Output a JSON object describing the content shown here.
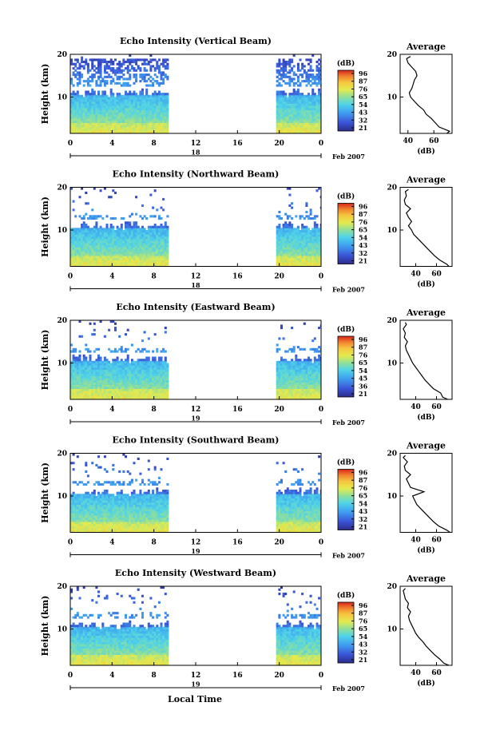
{
  "figure": {
    "date_label": "Feb 2007",
    "x_axis_label": "Local Time",
    "height_label": "Height (km)",
    "colorbar_unit": "(dB)",
    "average_title": "Average",
    "average_xlabel": "(dB)"
  },
  "chart_data": [
    {
      "type": "heatmap",
      "title": "Echo Intensity (Vertical Beam)",
      "ylabel": "Height (km)",
      "x_ticks": [
        "0",
        "4",
        "8",
        "12",
        "16",
        "20",
        "0"
      ],
      "day_label": "18",
      "date_label": "Feb 2007",
      "xlim": [
        0,
        24
      ],
      "ylim": [
        1.5,
        20
      ],
      "y_ticks": [
        "20",
        "10"
      ],
      "data_periods_hours": [
        [
          0,
          9.4
        ],
        [
          19.7,
          24
        ]
      ],
      "colorbar": {
        "unit": "(dB)",
        "ticks": [
          "96",
          "87",
          "76",
          "65",
          "54",
          "43",
          "32",
          "21"
        ],
        "range_db": [
          21,
          96
        ]
      },
      "average_profile": {
        "title": "Average",
        "xlabel": "(dB)",
        "x_ticks": [
          "40",
          "60"
        ],
        "xlim": [
          34,
          74
        ],
        "height_km": [
          1.5,
          2,
          3,
          4,
          5,
          6,
          7,
          8,
          9,
          10,
          11,
          12,
          13,
          14,
          15,
          16,
          17,
          18,
          19,
          19.5
        ],
        "db": [
          70,
          72,
          64,
          61,
          58,
          54,
          52,
          48,
          45,
          42,
          41,
          43,
          44,
          45,
          47,
          46,
          43,
          40,
          39,
          42
        ]
      }
    },
    {
      "type": "heatmap",
      "title": "Echo Intensity (Northward Beam)",
      "ylabel": "Height (km)",
      "x_ticks": [
        "0",
        "4",
        "8",
        "12",
        "16",
        "20",
        "0"
      ],
      "day_label": "18",
      "date_label": "Feb 2007",
      "xlim": [
        0,
        24
      ],
      "ylim": [
        1.5,
        20
      ],
      "y_ticks": [
        "20",
        "10"
      ],
      "data_periods_hours": [
        [
          0,
          9.4
        ],
        [
          19.7,
          24
        ]
      ],
      "colorbar": {
        "unit": "(dB)",
        "ticks": [
          "96",
          "87",
          "76",
          "65",
          "54",
          "43",
          "32",
          "21"
        ],
        "range_db": [
          21,
          96
        ]
      },
      "average_profile": {
        "title": "Average",
        "xlabel": "(dB)",
        "x_ticks": [
          "40",
          "60"
        ],
        "xlim": [
          25,
          75
        ],
        "height_km": [
          1.5,
          2,
          3,
          4,
          5,
          6,
          7,
          8,
          9,
          10,
          11,
          12,
          13,
          14,
          15,
          16,
          17,
          18,
          19,
          19.5
        ],
        "db": [
          72,
          70,
          63,
          58,
          54,
          50,
          46,
          42,
          38,
          36,
          33,
          36,
          33,
          31,
          35,
          30,
          29,
          31,
          30,
          33
        ]
      }
    },
    {
      "type": "heatmap",
      "title": "Echo Intensity (Eastward Beam)",
      "ylabel": "Height (km)",
      "x_ticks": [
        "0",
        "4",
        "8",
        "12",
        "16",
        "20",
        "0"
      ],
      "day_label": "19",
      "date_label": "Feb 2007",
      "xlim": [
        0,
        24
      ],
      "ylim": [
        1.5,
        20
      ],
      "y_ticks": [
        "20",
        "10"
      ],
      "data_periods_hours": [
        [
          0,
          9.4
        ],
        [
          19.7,
          24
        ]
      ],
      "colorbar": {
        "unit": "(dB)",
        "ticks": [
          "96",
          "87",
          "76",
          "65",
          "54",
          "45",
          "36",
          "21"
        ],
        "range_db": [
          21,
          96
        ]
      },
      "average_profile": {
        "title": "Average",
        "xlabel": "(dB)",
        "x_ticks": [
          "40",
          "60"
        ],
        "xlim": [
          25,
          75
        ],
        "height_km": [
          1.5,
          2,
          3,
          4,
          5,
          6,
          7,
          8,
          9,
          10,
          11,
          12,
          13,
          14,
          15,
          16,
          17,
          18,
          19,
          19.5
        ],
        "db": [
          71,
          66,
          64,
          57,
          53,
          49,
          46,
          43,
          40,
          37,
          35,
          33,
          31,
          30,
          32,
          29,
          30,
          28,
          31,
          30
        ]
      }
    },
    {
      "type": "heatmap",
      "title": "Echo Intensity (Southward Beam)",
      "ylabel": "Height (km)",
      "x_ticks": [
        "0",
        "4",
        "8",
        "12",
        "16",
        "20",
        "0"
      ],
      "day_label": "19",
      "date_label": "Feb 2007",
      "xlim": [
        0,
        24
      ],
      "ylim": [
        1.5,
        20
      ],
      "y_ticks": [
        "20",
        "10"
      ],
      "data_periods_hours": [
        [
          0,
          9.4
        ],
        [
          19.7,
          24
        ]
      ],
      "colorbar": {
        "unit": "(dB)",
        "ticks": [
          "96",
          "87",
          "76",
          "65",
          "54",
          "43",
          "32",
          "21"
        ],
        "range_db": [
          21,
          96
        ]
      },
      "average_profile": {
        "title": "Average",
        "xlabel": "(dB)",
        "x_ticks": [
          "40",
          "60"
        ],
        "xlim": [
          25,
          75
        ],
        "height_km": [
          1.5,
          2,
          3,
          4,
          5,
          6,
          7,
          8,
          9,
          10,
          11,
          12,
          13,
          14,
          15,
          16,
          17,
          18,
          19,
          19.5
        ],
        "db": [
          73,
          70,
          62,
          57,
          53,
          49,
          45,
          41,
          39,
          37,
          48,
          35,
          33,
          31,
          35,
          30,
          29,
          32,
          28,
          30
        ]
      }
    },
    {
      "type": "heatmap",
      "title": "Echo Intensity (Westward Beam)",
      "ylabel": "Height (km)",
      "x_ticks": [
        "0",
        "4",
        "8",
        "12",
        "16",
        "20",
        "0"
      ],
      "day_label": "19",
      "date_label": "Feb 2007",
      "xlim": [
        0,
        24
      ],
      "ylim": [
        1.5,
        20
      ],
      "y_ticks": [
        "20",
        "10"
      ],
      "data_periods_hours": [
        [
          0,
          9.4
        ],
        [
          19.7,
          24
        ]
      ],
      "colorbar": {
        "unit": "(dB)",
        "ticks": [
          "96",
          "87",
          "76",
          "65",
          "54",
          "43",
          "32",
          "21"
        ],
        "range_db": [
          21,
          96
        ]
      },
      "average_profile": {
        "title": "Average",
        "xlabel": "(dB)",
        "x_ticks": [
          "40",
          "60"
        ],
        "xlim": [
          25,
          75
        ],
        "height_km": [
          1.5,
          2,
          3,
          4,
          5,
          6,
          7,
          8,
          9,
          10,
          11,
          12,
          13,
          14,
          15,
          16,
          17,
          18,
          19,
          19.5
        ],
        "db": [
          72,
          67,
          63,
          58,
          54,
          50,
          47,
          43,
          40,
          38,
          36,
          34,
          33,
          35,
          32,
          33,
          30,
          29,
          28,
          30
        ]
      }
    }
  ]
}
